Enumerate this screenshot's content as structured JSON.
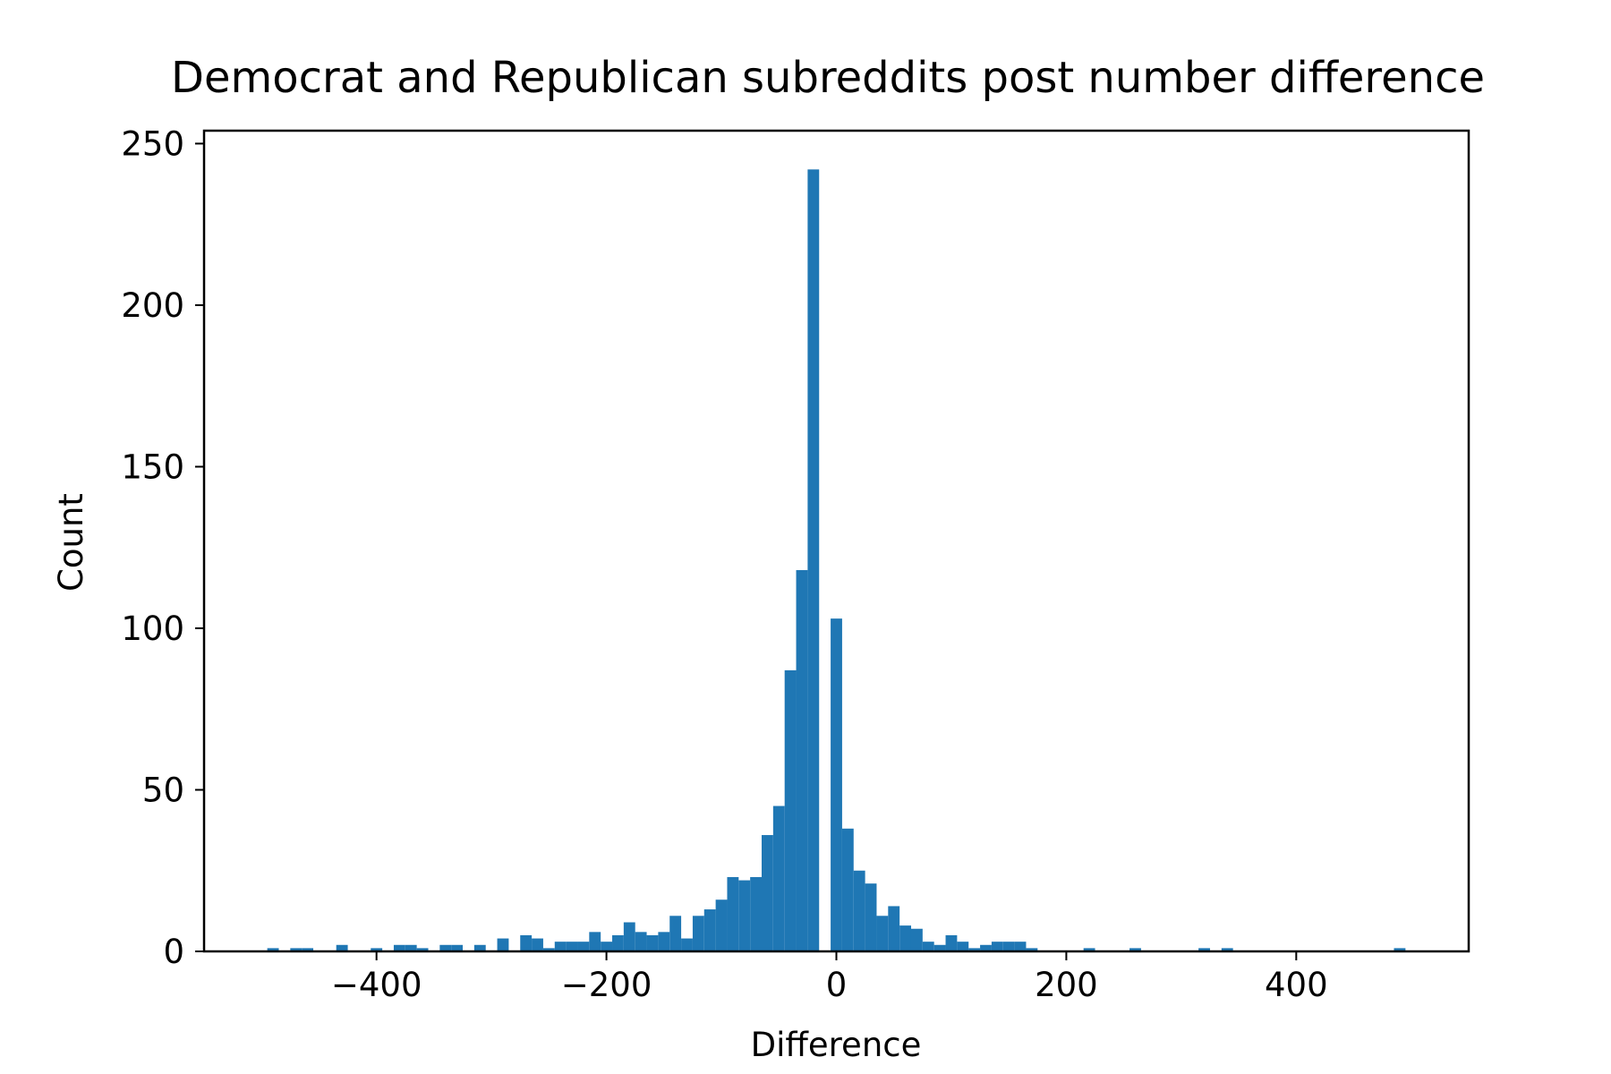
{
  "chart_data": {
    "type": "bar",
    "title": "Democrat and Republican subreddits post number difference",
    "xlabel": "Difference",
    "ylabel": "Count",
    "xlim": [
      -550,
      550
    ],
    "ylim": [
      0,
      254
    ],
    "xticks": [
      -400,
      -200,
      0,
      200,
      400
    ],
    "xtick_labels": [
      "−400",
      "−200",
      "0",
      "200",
      "400"
    ],
    "yticks": [
      0,
      50,
      100,
      150,
      200,
      250
    ],
    "ytick_labels": [
      "0",
      "50",
      "100",
      "150",
      "200",
      "250"
    ],
    "bar_color": "#1f77b4",
    "bin_start": -495,
    "bin_width": 10,
    "values": [
      1,
      0,
      1,
      1,
      0,
      0,
      2,
      0,
      0,
      1,
      0,
      2,
      2,
      1,
      0,
      2,
      2,
      0,
      2,
      0,
      4,
      0,
      5,
      4,
      1,
      3,
      3,
      3,
      6,
      3,
      5,
      9,
      6,
      5,
      6,
      11,
      4,
      11,
      13,
      16,
      23,
      22,
      23,
      36,
      45,
      87,
      118,
      242,
      0,
      103,
      38,
      25,
      21,
      11,
      14,
      8,
      7,
      3,
      2,
      5,
      3,
      1,
      2,
      3,
      3,
      3,
      1,
      0,
      0,
      0,
      0,
      1,
      0,
      0,
      0,
      1,
      0,
      0,
      0,
      0,
      0,
      1,
      0,
      1,
      0,
      0,
      0,
      0,
      0,
      0,
      0,
      0,
      0,
      0,
      0,
      0,
      0,
      0,
      1
    ]
  }
}
